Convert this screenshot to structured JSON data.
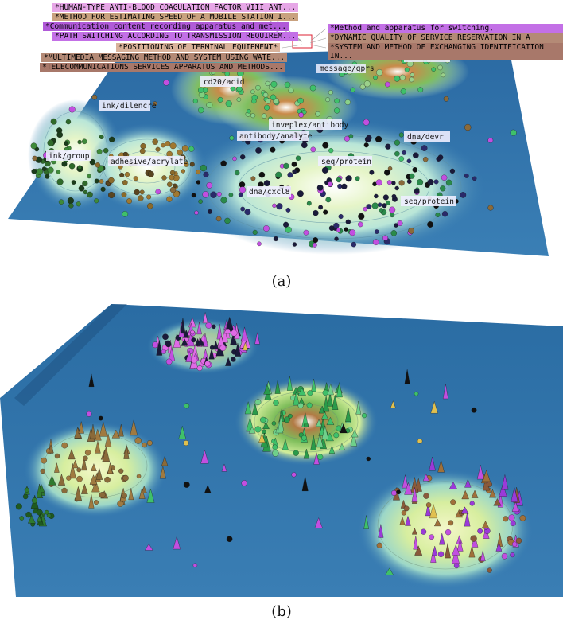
{
  "panel_a": {
    "caption": "(a)",
    "patent_titles_left": [
      {
        "text": "*HUMAN-TYPE ANTI-BLOOD COAGULATION FACTOR VIII ANT...",
        "color": "#e6a6e6"
      },
      {
        "text": "*METHOD FOR ESTIMATING SPEED OF A MOBILE STATION I...",
        "color": "#c9a27f"
      },
      {
        "text": "*Communication content recording apparatus and met...",
        "color": "#b05ad8"
      },
      {
        "text": "*PATH SWITCHING ACCORDING TO TRANSMISSION REQUIREM...",
        "color": "#c370e6"
      },
      {
        "text": "*POSITIONING OF TERMINAL EQUIPMENT*",
        "color": "#d9b29a"
      },
      {
        "text": "*MULTIMEDIA MESSAGING METHOD AND SYSTEM USING WATE...",
        "color": "#b48a76"
      },
      {
        "text": "*TELECOMMUNICATIONS SERVICES APPARATUS AND METHODS...",
        "color": "#a8786a"
      }
    ],
    "patent_titles_right": [
      {
        "text": "*Method and apparatus for switching, multicasting...",
        "color": "#c370e6"
      },
      {
        "text": "*DYNAMIC QUALITY OF SERVICE RESERVATION IN A MOBIL...",
        "color": "#b48a76"
      },
      {
        "text": "*SYSTEM AND METHOD OF EXCHANGING IDENTIFICATION IN...",
        "color": "#a8786a"
      }
    ],
    "region_labels": {
      "atm_address": "atm/address",
      "message_gprs": "message/gprs",
      "cd20_acid": "cd20/acid",
      "ink_dilencre": "ink/dilencre",
      "inveplex_antibody": "inveplex/antibody",
      "antibody_analyte": "antibody/analyte",
      "dna_devr": "dna/devr",
      "ink_group": "ink/group",
      "adhesive_acrylate": "adhesive/acrylate",
      "seq_protein_1": "seq/protein",
      "dna_cxcl8": "dna/cxcl8",
      "seq_protein_2": "seq/protein"
    }
  },
  "panel_b": {
    "caption": "(b)"
  },
  "colors": {
    "terrain_blue": "#2f6fa6",
    "terrain_light": "#9fd9d9",
    "peak_green": "#8fd07f",
    "peak_brown": "#8a5a2a",
    "marker_purple": "#c24fe0",
    "marker_green": "#3fc06a",
    "marker_brown": "#8a6a3a",
    "marker_dark": "#1a1a3a"
  }
}
